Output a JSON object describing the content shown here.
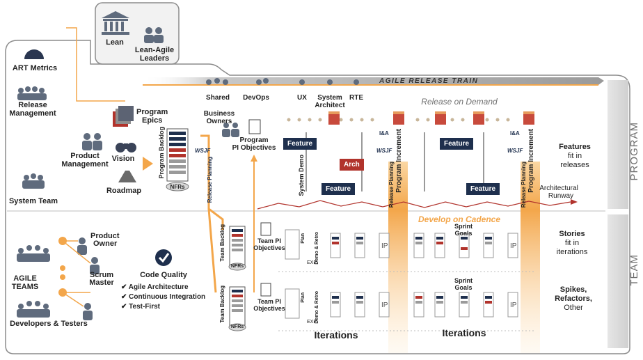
{
  "top_box": {
    "lean": "Lean",
    "lean_agile_leaders_1": "Lean-Agile",
    "lean_agile_leaders_2": "Leaders"
  },
  "left": {
    "art_metrics": "ART Metrics",
    "release_mgmt_1": "Release",
    "release_mgmt_2": "Management",
    "product_mgmt_1": "Product",
    "product_mgmt_2": "Management",
    "system_team": "System Team",
    "program_epics_1": "Program",
    "program_epics_2": "Epics",
    "vision": "Vision",
    "roadmap": "Roadmap",
    "program_backlog": "Program Backlog",
    "nfrs": "NFRs",
    "wsjf": "WSJF",
    "release_planning": "Release Planning"
  },
  "train": {
    "title": "AGILE RELEASE TRAIN",
    "roles": [
      "Shared",
      "DevOps",
      "UX",
      "System",
      "Architect",
      "RTE"
    ],
    "release_on_demand": "Release on Demand",
    "business_owners_1": "Business",
    "business_owners_2": "Owners",
    "program_pi_obj_1": "Program",
    "program_pi_obj_2": "PI Objectives"
  },
  "program": {
    "feature": "Feature",
    "arch": "Arch",
    "system_demo": "System Demo",
    "release_planning": "Release Planning",
    "program_increment": "Program Increment",
    "wsjf": "WSJF",
    "ia": "I&A",
    "arch_runway_1": "Architectural",
    "arch_runway_2": "Runway",
    "features_title": "Features",
    "features_sub_1": "fit in",
    "features_sub_2": "releases",
    "side_label": "PROGRAM"
  },
  "team": {
    "develop_on_cadence": "Develop on Cadence",
    "product_owner_1": "Product",
    "product_owner_2": "Owner",
    "scrum_master_1": "Scrum",
    "scrum_master_2": "Master",
    "agile_teams_1": "AGILE",
    "agile_teams_2": "TEAMS",
    "devs_testers": "Developers & Testers",
    "code_quality": "Code Quality",
    "cq_items": [
      "Agile Architecture",
      "Continuous Integration",
      "Test-First"
    ],
    "team_backlog": "Team Backlog",
    "nfrs": "NFRs",
    "team_pi_obj_1": "Team PI",
    "team_pi_obj_2": "Objectives",
    "plan": "Plan",
    "demo_retro": "Demo & Retro",
    "exe": "EXE",
    "ip": "IP",
    "sprint_goals_1": "Sprint",
    "sprint_goals_2": "Goals",
    "iterations": "Iterations",
    "stories_title": "Stories",
    "stories_sub_1": "fit in",
    "stories_sub_2": "iterations",
    "spikes_1": "Spikes,",
    "spikes_2": "Refactors,",
    "spikes_3": "Other",
    "side_label": "TEAM"
  },
  "colors": {
    "orange": "#f3a64a",
    "navy": "#1e2f4d",
    "red": "#b1332c",
    "gray": "#6f6f6f"
  }
}
